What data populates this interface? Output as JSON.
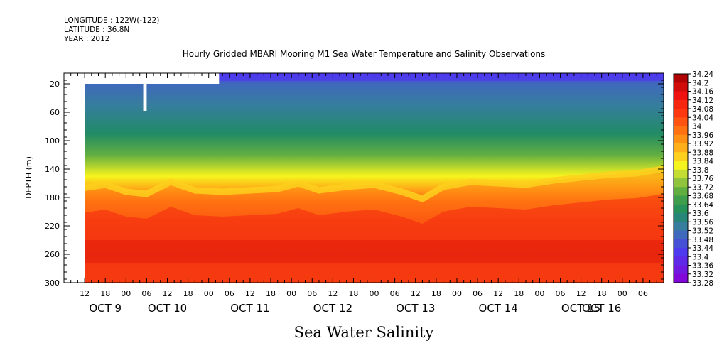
{
  "header": {
    "longitude": "LONGITUDE : 122W(-122)",
    "latitude": "LATITUDE : 36.8N",
    "year": "YEAR : 2012"
  },
  "chart_data": {
    "type": "heatmap",
    "title": "Hourly Gridded MBARI Mooring M1 Sea Water Temperature and Salinity Observations",
    "xlabel": "Sea Water Salinity",
    "ylabel": "DEPTH (m)",
    "x_range_hours": [
      -18,
      156
    ],
    "x_origin": "OCT 9 00",
    "x_hour_ticks": [
      "12",
      "18",
      "00",
      "06",
      "12",
      "18",
      "00",
      "06",
      "12",
      "18",
      "00",
      "06",
      "12",
      "18",
      "00",
      "06",
      "12",
      "18",
      "00",
      "06",
      "12",
      "18",
      "00",
      "06",
      "12",
      "18",
      "00",
      "06"
    ],
    "x_date_labels": [
      "OCT  9",
      "OCT 10",
      "OCT 11",
      "OCT 12",
      "OCT 13",
      "OCT 14",
      "OCT 15",
      "OCT 16"
    ],
    "y_ticks": [
      20,
      60,
      100,
      140,
      180,
      220,
      260,
      300
    ],
    "ylim": [
      300,
      5
    ],
    "colorbar": {
      "levels": [
        34.24,
        34.2,
        34.16,
        34.12,
        34.08,
        34.04,
        34,
        33.96,
        33.92,
        33.88,
        33.84,
        33.8,
        33.76,
        33.72,
        33.68,
        33.64,
        33.6,
        33.56,
        33.52,
        33.48,
        33.44,
        33.4,
        33.36,
        33.32,
        33.28
      ],
      "min": 33.28,
      "max": 34.24
    },
    "depth_profile": [
      {
        "depth": 10,
        "salinity": 33.43
      },
      {
        "depth": 20,
        "salinity": 33.5
      },
      {
        "depth": 50,
        "salinity": 33.54
      },
      {
        "depth": 90,
        "salinity": 33.6
      },
      {
        "depth": 120,
        "salinity": 33.7
      },
      {
        "depth": 150,
        "salinity": 33.82
      },
      {
        "depth": 170,
        "salinity": 33.92
      },
      {
        "depth": 185,
        "salinity": 34.0
      },
      {
        "depth": 210,
        "salinity": 34.08
      },
      {
        "depth": 240,
        "salinity": 34.14
      },
      {
        "depth": 260,
        "salinity": 34.17
      },
      {
        "depth": 280,
        "salinity": 34.13
      },
      {
        "depth": 300,
        "salinity": 34.1
      }
    ],
    "halocline_depth_m": [
      {
        "hour": -14,
        "depth": 168
      },
      {
        "hour": -6,
        "depth": 162
      },
      {
        "hour": 0,
        "depth": 172
      },
      {
        "hour": 6,
        "depth": 175
      },
      {
        "hour": 13,
        "depth": 158
      },
      {
        "hour": 20,
        "depth": 170
      },
      {
        "hour": 28,
        "depth": 172
      },
      {
        "hour": 36,
        "depth": 170
      },
      {
        "hour": 44,
        "depth": 168
      },
      {
        "hour": 50,
        "depth": 160
      },
      {
        "hour": 56,
        "depth": 170
      },
      {
        "hour": 64,
        "depth": 165
      },
      {
        "hour": 72,
        "depth": 162
      },
      {
        "hour": 80,
        "depth": 172
      },
      {
        "hour": 86,
        "depth": 182
      },
      {
        "hour": 92,
        "depth": 165
      },
      {
        "hour": 100,
        "depth": 158
      },
      {
        "hour": 108,
        "depth": 160
      },
      {
        "hour": 116,
        "depth": 162
      },
      {
        "hour": 124,
        "depth": 156
      },
      {
        "hour": 132,
        "depth": 152
      },
      {
        "hour": 140,
        "depth": 148
      },
      {
        "hour": 148,
        "depth": 146
      },
      {
        "hour": 156,
        "depth": 140
      }
    ],
    "missing_data": [
      {
        "from_hour": -18,
        "to_hour": -12,
        "from_depth": 5,
        "to_depth": 300
      },
      {
        "from_hour": -12,
        "to_hour": 27,
        "from_depth": 5,
        "to_depth": 20
      },
      {
        "from_hour": 5,
        "to_hour": 6,
        "from_depth": 20,
        "to_depth": 58
      }
    ]
  }
}
